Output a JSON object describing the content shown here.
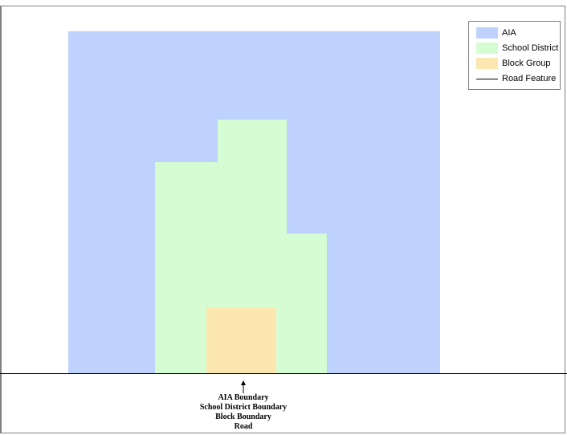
{
  "legend": {
    "items": [
      {
        "label": "AIA",
        "color": "#bfd1fd",
        "kind": "swatch"
      },
      {
        "label": "School District",
        "color": "#d5fcd3",
        "kind": "swatch"
      },
      {
        "label": "Block Group",
        "color": "#fde7b1",
        "kind": "swatch"
      },
      {
        "label": "Road Feature",
        "color": "#000000",
        "kind": "line"
      }
    ]
  },
  "regions": {
    "aia_color": "#bfd1fd",
    "school_district_color": "#d5fcd3",
    "block_group_color": "#fde7b1"
  },
  "annotation": {
    "lines": [
      "AIA Boundary",
      "School District Boundary",
      "Block Boundary",
      "Road"
    ]
  }
}
